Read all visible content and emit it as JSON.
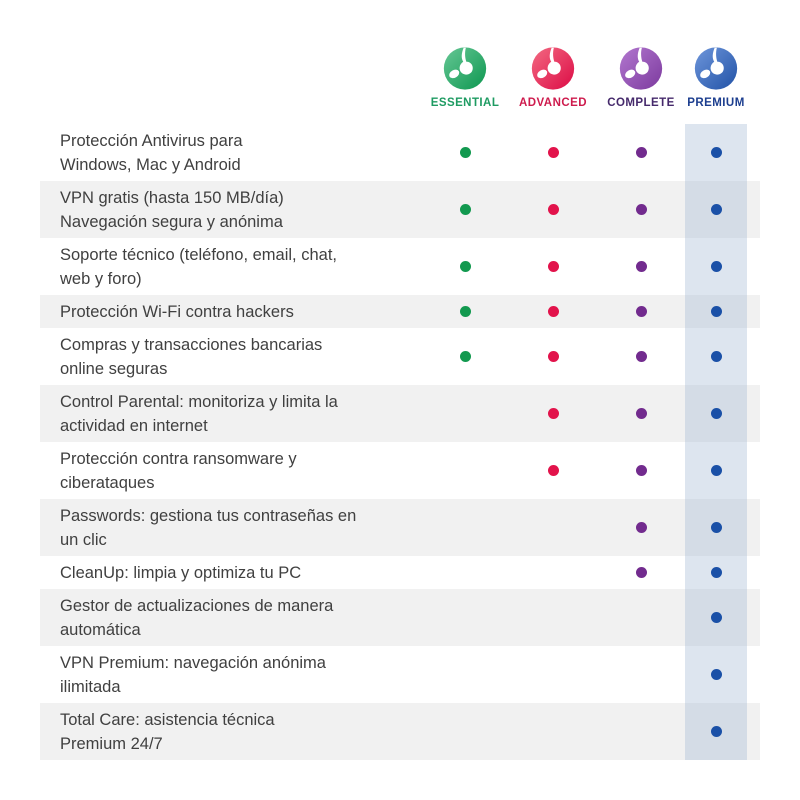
{
  "header": {
    "plans": [
      {
        "name": "ESSENTIAL",
        "label_color": "#1e9b62",
        "dot_color": "#12994f",
        "gradient_light": "#66c795",
        "gradient_dark": "#0d9750",
        "highlighted": false
      },
      {
        "name": "ADVANCED",
        "label_color": "#ce1b4d",
        "dot_color": "#e2134b",
        "gradient_light": "#f36a82",
        "gradient_dark": "#dc0b45",
        "highlighted": false
      },
      {
        "name": "COMPLETE",
        "label_color": "#45296b",
        "dot_color": "#722b8e",
        "gradient_light": "#b277cf",
        "gradient_dark": "#7c3a9e",
        "highlighted": false
      },
      {
        "name": "PREMIUM",
        "label_color": "#1c3e8f",
        "dot_color": "#1a50a7",
        "gradient_light": "#6e96db",
        "gradient_dark": "#2152a6",
        "highlighted": true
      }
    ]
  },
  "table": {
    "features": [
      {
        "lines": [
          "Protección Antivirus para",
          "Windows, Mac y Android"
        ],
        "plans": [
          true,
          true,
          true,
          true
        ]
      },
      {
        "lines": [
          "VPN gratis (hasta 150 MB/día)",
          "Navegación segura y anónima"
        ],
        "plans": [
          true,
          true,
          true,
          true
        ]
      },
      {
        "lines": [
          "Soporte técnico (teléfono, email, chat,",
          "web y foro)"
        ],
        "plans": [
          true,
          true,
          true,
          true
        ]
      },
      {
        "lines": [
          "Protección Wi-Fi contra hackers"
        ],
        "plans": [
          true,
          true,
          true,
          true
        ]
      },
      {
        "lines": [
          "Compras y transacciones bancarias",
          "online seguras"
        ],
        "plans": [
          true,
          true,
          true,
          true
        ]
      },
      {
        "lines": [
          "Control Parental: monitoriza y limita la",
          "actividad en internet"
        ],
        "plans": [
          false,
          true,
          true,
          true
        ]
      },
      {
        "lines": [
          "Protección contra ransomware y",
          "ciberataques"
        ],
        "plans": [
          false,
          true,
          true,
          true
        ]
      },
      {
        "lines": [
          "Passwords: gestiona tus contraseñas en",
          "un clic"
        ],
        "plans": [
          false,
          false,
          true,
          true
        ]
      },
      {
        "lines": [
          "CleanUp: limpia y optimiza tu PC"
        ],
        "plans": [
          false,
          false,
          true,
          true
        ]
      },
      {
        "lines": [
          "Gestor de actualizaciones de manera",
          "automática"
        ],
        "plans": [
          false,
          false,
          false,
          true
        ]
      },
      {
        "lines": [
          "VPN Premium: navegación anónima",
          "ilimitada"
        ],
        "plans": [
          false,
          false,
          false,
          true
        ]
      },
      {
        "lines": [
          "Total Care: asistencia técnica",
          "Premium 24/7"
        ],
        "plans": [
          false,
          false,
          false,
          true
        ]
      }
    ]
  },
  "colors": {
    "text": "#404040",
    "row_alt": "#f1f1f1",
    "premium_highlight": "rgba(170,190,215,0.4)"
  }
}
